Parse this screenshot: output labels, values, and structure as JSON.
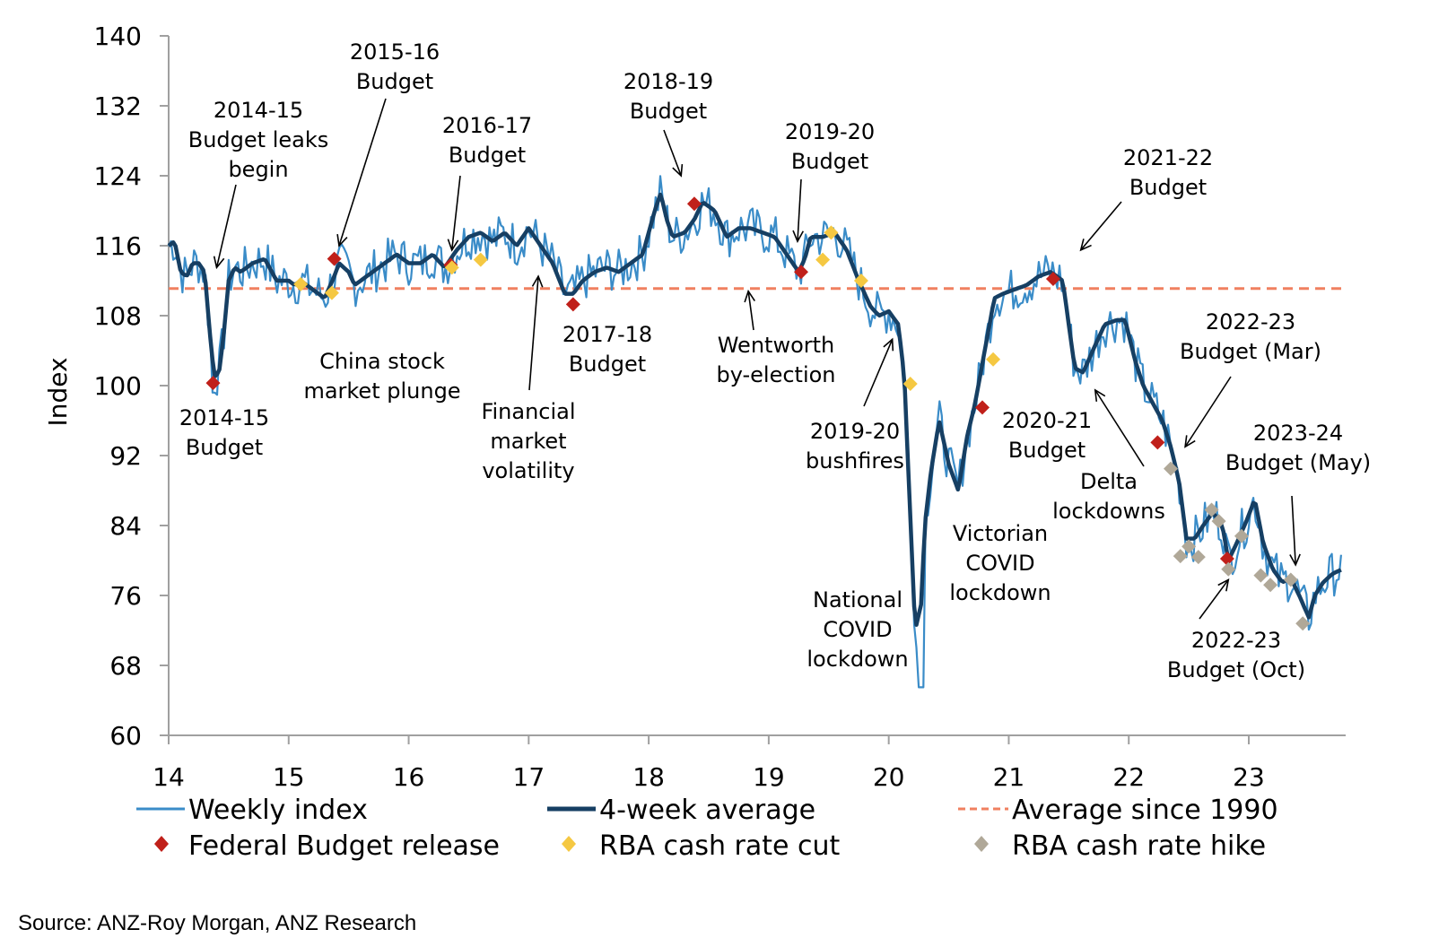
{
  "chart_data": {
    "type": "line",
    "title": "",
    "xlabel": "",
    "ylabel": "Index",
    "ylim": [
      60,
      140
    ],
    "yticks": [
      60,
      68,
      76,
      84,
      92,
      100,
      108,
      116,
      124,
      132,
      140
    ],
    "xlim": [
      14,
      23.8
    ],
    "xticks": [
      14,
      15,
      16,
      17,
      18,
      19,
      20,
      21,
      22,
      23
    ],
    "grid": false,
    "legend_position": "bottom",
    "colors": {
      "weekly": "#3a8cc8",
      "average4w": "#163f63",
      "average1990": "#f08060",
      "budget": "#c0201a",
      "cut": "#f5c842",
      "hike": "#b0a898",
      "axis": "#a0a0a0",
      "arrow": "#000000"
    },
    "series": [
      {
        "name": "4-week average",
        "kind": "line",
        "x": [
          14.0,
          14.05,
          14.1,
          14.15,
          14.2,
          14.25,
          14.3,
          14.35,
          14.38,
          14.42,
          14.46,
          14.5,
          14.55,
          14.6,
          14.7,
          14.8,
          14.9,
          15.0,
          15.05,
          15.1,
          15.2,
          15.3,
          15.38,
          15.42,
          15.5,
          15.55,
          15.6,
          15.7,
          15.8,
          15.9,
          16.0,
          16.1,
          16.2,
          16.3,
          16.35,
          16.4,
          16.5,
          16.6,
          16.7,
          16.8,
          16.9,
          17.0,
          17.1,
          17.2,
          17.3,
          17.37,
          17.45,
          17.55,
          17.65,
          17.75,
          17.85,
          17.95,
          18.05,
          18.1,
          18.15,
          18.2,
          18.3,
          18.38,
          18.45,
          18.55,
          18.65,
          18.75,
          18.85,
          18.95,
          19.05,
          19.15,
          19.25,
          19.3,
          19.35,
          19.45,
          19.55,
          19.65,
          19.75,
          19.85,
          19.92,
          20.0,
          20.08,
          20.13,
          20.18,
          20.22,
          20.27,
          20.3,
          20.35,
          20.42,
          20.5,
          20.58,
          20.65,
          20.72,
          20.8,
          20.88,
          20.95,
          21.05,
          21.15,
          21.25,
          21.35,
          21.45,
          21.5,
          21.55,
          21.62,
          21.7,
          21.8,
          21.9,
          21.97,
          22.05,
          22.12,
          22.2,
          22.28,
          22.35,
          22.42,
          22.48,
          22.55,
          22.62,
          22.7,
          22.78,
          22.83,
          22.9,
          22.98,
          23.05,
          23.12,
          23.2,
          23.28,
          23.35,
          23.42,
          23.5,
          23.55,
          23.62,
          23.7,
          23.78
        ],
        "y": [
          116,
          116.5,
          113,
          112.5,
          114,
          114,
          113,
          105,
          101,
          101.5,
          106,
          112,
          113.5,
          113,
          114,
          114.5,
          112,
          112,
          111.5,
          112,
          111,
          110,
          112.5,
          114,
          113,
          111.5,
          112,
          113,
          114,
          115,
          114,
          114,
          115,
          113.5,
          114.5,
          115.5,
          117,
          117.5,
          116.5,
          117.5,
          116,
          118,
          116,
          114,
          110.5,
          110.5,
          112,
          113,
          113.5,
          113,
          114,
          115,
          120,
          122,
          119,
          117,
          117.5,
          119,
          121,
          120,
          117,
          118,
          118,
          117.5,
          117,
          115,
          113,
          114.5,
          117,
          117,
          117.5,
          115.5,
          112,
          109,
          108,
          108.5,
          107,
          101,
          85,
          72,
          75,
          84,
          90,
          96,
          91,
          88,
          94,
          98,
          104,
          110,
          110.5,
          111,
          111.5,
          112.5,
          113,
          112,
          107,
          102,
          101.5,
          104,
          107,
          107.5,
          107.5,
          103,
          100,
          98,
          96,
          93,
          89,
          82.5,
          82.5,
          84,
          85.5,
          84,
          80,
          82,
          84.5,
          87,
          82,
          79,
          77.5,
          78,
          76,
          73.5,
          76,
          77.5,
          78.5,
          79
        ]
      },
      {
        "name": "Weekly index",
        "kind": "line",
        "note": "Weekly values fluctuate around the 4-week average (typically within about ±3 index points); lowest weekly reading about 65.5 in early 2020 (National COVID lockdown)."
      },
      {
        "name": "Average since 1990",
        "kind": "hline",
        "y": 111.1
      },
      {
        "name": "Federal Budget release",
        "kind": "marker",
        "shape": "diamond",
        "points": [
          {
            "x": 14.37,
            "y": 100.3
          },
          {
            "x": 15.38,
            "y": 114.5
          },
          {
            "x": 16.35,
            "y": 113.8
          },
          {
            "x": 17.37,
            "y": 109.3
          },
          {
            "x": 18.38,
            "y": 120.8
          },
          {
            "x": 19.27,
            "y": 113.0
          },
          {
            "x": 20.78,
            "y": 97.5
          },
          {
            "x": 21.37,
            "y": 112.2
          },
          {
            "x": 22.24,
            "y": 93.5
          },
          {
            "x": 22.82,
            "y": 80.2
          }
        ]
      },
      {
        "name": "RBA cash rate cut",
        "kind": "marker",
        "shape": "diamond",
        "points": [
          {
            "x": 15.1,
            "y": 111.6
          },
          {
            "x": 15.36,
            "y": 110.6
          },
          {
            "x": 16.36,
            "y": 113.5
          },
          {
            "x": 16.6,
            "y": 114.4
          },
          {
            "x": 19.45,
            "y": 114.4
          },
          {
            "x": 19.52,
            "y": 117.5
          },
          {
            "x": 19.77,
            "y": 112.0
          },
          {
            "x": 20.18,
            "y": 100.2
          },
          {
            "x": 20.87,
            "y": 103.0
          }
        ]
      },
      {
        "name": "RBA cash rate hike",
        "kind": "marker",
        "shape": "diamond",
        "points": [
          {
            "x": 22.35,
            "y": 90.5
          },
          {
            "x": 22.43,
            "y": 80.5
          },
          {
            "x": 22.5,
            "y": 81.6
          },
          {
            "x": 22.58,
            "y": 80.4
          },
          {
            "x": 22.69,
            "y": 85.8
          },
          {
            "x": 22.75,
            "y": 84.5
          },
          {
            "x": 22.83,
            "y": 79.0
          },
          {
            "x": 22.94,
            "y": 82.8
          },
          {
            "x": 23.1,
            "y": 78.3
          },
          {
            "x": 23.18,
            "y": 77.2
          },
          {
            "x": 23.35,
            "y": 77.8
          },
          {
            "x": 23.45,
            "y": 72.8
          }
        ]
      }
    ],
    "annotations": [
      {
        "lines": [
          "2014-15",
          "Budget leaks",
          "begin"
        ],
        "target": {
          "x": 14.4,
          "y": 113.5
        }
      },
      {
        "lines": [
          "2014-15",
          "Budget"
        ],
        "target": null
      },
      {
        "lines": [
          "2015-16",
          "Budget"
        ],
        "target": {
          "x": 15.42,
          "y": 116
        }
      },
      {
        "lines": [
          "China stock",
          "market plunge"
        ],
        "target": null
      },
      {
        "lines": [
          "2016-17",
          "Budget"
        ],
        "target": {
          "x": 16.36,
          "y": 115.5
        }
      },
      {
        "lines": [
          "Financial",
          "market",
          "volatility"
        ],
        "target": {
          "x": 17.08,
          "y": 112.5
        }
      },
      {
        "lines": [
          "2017-18",
          "Budget"
        ],
        "target": null
      },
      {
        "lines": [
          "2018-19",
          "Budget"
        ],
        "target": {
          "x": 18.27,
          "y": 124
        }
      },
      {
        "lines": [
          "Wentworth",
          "by-election"
        ],
        "target": {
          "x": 18.83,
          "y": 110.8
        }
      },
      {
        "lines": [
          "2019-20",
          "Budget"
        ],
        "target": {
          "x": 19.24,
          "y": 116.5
        }
      },
      {
        "lines": [
          "2019-20",
          "bushfires"
        ],
        "target": {
          "x": 20.03,
          "y": 105.3
        }
      },
      {
        "lines": [
          "National",
          "COVID",
          "lockdown"
        ],
        "target": null
      },
      {
        "lines": [
          "Victorian",
          "COVID",
          "lockdown"
        ],
        "target": null
      },
      {
        "lines": [
          "2020-21",
          "Budget"
        ],
        "target": null
      },
      {
        "lines": [
          "2021-22",
          "Budget"
        ],
        "target": {
          "x": 21.6,
          "y": 115.5
        }
      },
      {
        "lines": [
          "Delta",
          "lockdowns"
        ],
        "target": {
          "x": 21.72,
          "y": 99.5
        }
      },
      {
        "lines": [
          "2022-23",
          "Budget (Mar)"
        ],
        "target": {
          "x": 22.47,
          "y": 93
        }
      },
      {
        "lines": [
          "2023-24",
          "Budget (May)"
        ],
        "target": {
          "x": 23.39,
          "y": 79.5
        }
      },
      {
        "lines": [
          "2022-23",
          "Budget (Oct)"
        ],
        "target": {
          "x": 22.83,
          "y": 77.8
        }
      }
    ],
    "legend": [
      {
        "label": "Weekly index",
        "style": "line-thin"
      },
      {
        "label": "4-week average",
        "style": "line-thick"
      },
      {
        "label": "Average since 1990",
        "style": "line-dashed"
      },
      {
        "label": "Federal Budget release",
        "style": "marker-budget"
      },
      {
        "label": "RBA cash rate cut",
        "style": "marker-cut"
      },
      {
        "label": "RBA cash rate hike",
        "style": "marker-hike"
      }
    ]
  },
  "source": "Source: ANZ-Roy Morgan, ANZ Research"
}
